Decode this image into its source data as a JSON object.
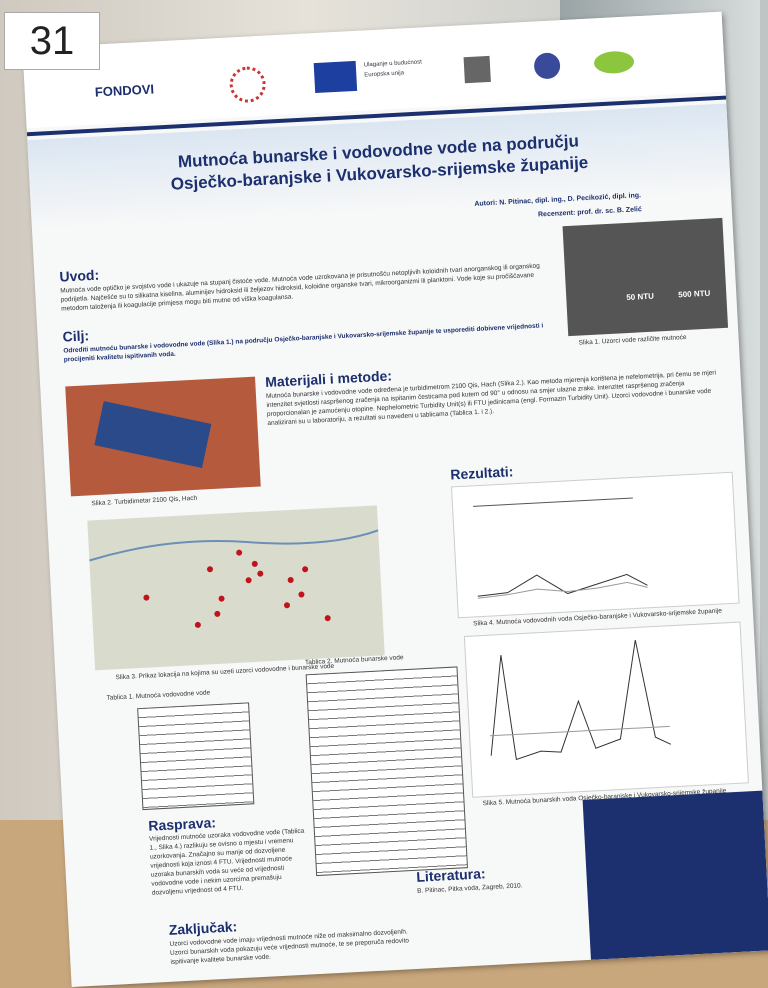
{
  "tag": "31",
  "header": {
    "logo_fondovi": "FONDOVI",
    "eu_text_1": "Ulaganje u budućnost",
    "eu_text_2": "Europska unija"
  },
  "title": {
    "line1": "Mutnoća bunarske i vodovodne vode na području",
    "line2": "Osječko-baranjske i Vukovarsko-srijemske županije"
  },
  "authors": "Autori: N. Pitinac, dipl. ing., D. Pecikozić, dipl. ing.",
  "reviewer": "Recenzent: prof. dr. sc. B. Zelić",
  "intro": {
    "heading": "Uvod:",
    "text": "Mutnoća vode optičko je svojstvo vode i ukazuje na stupanj čistoće vode. Mutnoća vode uzrokovana je prisutnošću netopljivih koloidnih tvari anorganskog ili organskog podrijetla. Najčešće su to silikatna kiselina, aluminijev hidroksid ili željezov hidroksid, koloidne organske tvari, mikroorganizmi ili planktoni. Vode koje su pročišćavane metodom taloženja ili koagulacije primjesa mogu biti mutne od viška koagulansa."
  },
  "goal": {
    "heading": "Cilj:",
    "text": "Odrediti mutnoću bunarske i vodovodne vode (Slika 1.) na području Osječko-baranjske i Vukovarsko-srijemske županije te usporediti dobivene vrijednosti i procijeniti kvalitetu ispitivanih voda."
  },
  "figure1": {
    "label_a": "50 NTU",
    "label_b": "500 NTU",
    "caption": "Slika 1. Uzorci vode različite mutnoće"
  },
  "methods": {
    "heading": "Materijali i metode:",
    "text": "Mutnoća bunarske i vodovodne vode određena je turbidimetrom 2100 Qis, Hach (Slika 2.). Kao metoda mjerenja korištena je nefelometrija, pri čemu se mjeri intenzitet svjetlosti raspršenog zračenja na ispitanim česticama pod kutem od 90° u odnosu na smjer ulazne zrake. Intenzitet raspršenog zračenja proporcionalan je zamućenju otopine. Nephelometric Turbidity Unit(s) ili FTU jedinicama (engl. Formazin Turbidity Unit). Uzorci vodovodne i bunarske vode analizirani su u laboratoriju, a rezultati su navedeni u tablicama (Tablica 1. i 2.)."
  },
  "figure2": {
    "caption": "Slika 2. Turbidimetar 2100 Qis, Hach"
  },
  "figure3": {
    "caption": "Slika 3. Prikaz lokacija na kojima su uzeti uzorci vodovodne i bunarske vode"
  },
  "table1": {
    "caption": "Tablica 1. Mutnoća vodovodne vode"
  },
  "table2": {
    "caption": "Tablica 2. Mutnoća bunarske vode"
  },
  "results": {
    "heading": "Rezultati:",
    "figure4_caption": "Slika 4. Mutnoća vodovodnih voda Osječko-baranjske i Vukovarsko-srijemske županije",
    "figure5_caption": "Slika 5. Mutnoća bunarskih voda Osječko-baranjske i Vukovarsko-srijemske županije"
  },
  "discussion": {
    "heading": "Rasprava:",
    "text": "Vrijednosti mutnoće uzoraka vodovodne vode (Tablica 1., Slika 4.) razlikuju se ovisno o mjestu i vremenu uzorkovanja. Značajno su manje od dozvoljene vrijednosti koja iznosi 4 FTU. Vrijednosti mutnoće uzoraka bunarskih voda su veće od vrijednosti vodovodne vode i nekim uzorcima premašuju dozvoljenu vrijednost od 4 FTU."
  },
  "literature": {
    "heading": "Literatura:",
    "text": "B. Pitinac, Pitka voda, Zagreb, 2010."
  },
  "conclusion": {
    "heading": "Zaključak:",
    "text": "Uzorci vodovodne vode imaju vrijednosti mutnoće niže od maksimalno dozvoljenih. Uzorci bunarskih voda pokazuju veće vrijednosti mutnoće, te se preporuča redovito ispitivanje kvalitete bunarske vode."
  }
}
